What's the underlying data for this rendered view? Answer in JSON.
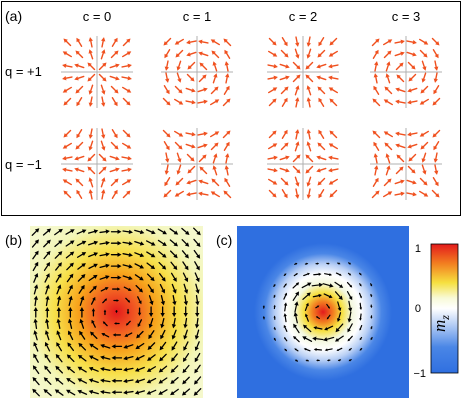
{
  "panel_a": {
    "label": "(a)",
    "column_headers": [
      "c = 0",
      "c = 1",
      "c = 2",
      "c = 3"
    ],
    "row_headers": [
      "q = +1",
      "q = −1"
    ],
    "c_values": [
      0,
      1,
      2,
      3
    ],
    "q_values": [
      1,
      -1
    ],
    "arrow_color": "#f0501e"
  },
  "panel_b": {
    "label": "(b)",
    "description_color_background": "#f4f8c8",
    "center_color": "#e21b1b"
  },
  "panel_c": {
    "label": "(c)",
    "background_color": "#2f6fe0",
    "center_color": "#e21b1b"
  },
  "colorbar": {
    "label": "m",
    "label_subscript": "z",
    "ticks": [
      "1",
      "0",
      "−1"
    ],
    "range": [
      -1,
      1
    ]
  }
}
